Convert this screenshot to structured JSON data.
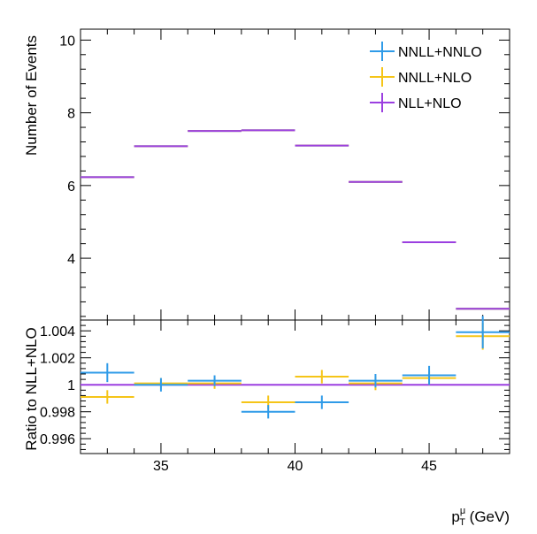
{
  "chart_data": [
    {
      "type": "line",
      "title": "",
      "xlabel": "",
      "ylabel": "Number of Events",
      "ylim": [
        2.3,
        10.3
      ],
      "xlim": [
        32,
        48
      ],
      "y_ticks": [
        "4",
        "6",
        "8",
        "10"
      ],
      "bins": [
        [
          32,
          34
        ],
        [
          34,
          36
        ],
        [
          36,
          38
        ],
        [
          38,
          40
        ],
        [
          40,
          42
        ],
        [
          42,
          44
        ],
        [
          44,
          46
        ],
        [
          46,
          48
        ]
      ],
      "series": [
        {
          "name": "NNLL+NNLO",
          "color": "#2f9be8",
          "values": [
            6.23,
            7.08,
            7.5,
            7.52,
            7.1,
            6.1,
            4.44,
            2.61
          ]
        },
        {
          "name": "NNLL+NLO",
          "color": "#f5c518",
          "values": [
            6.23,
            7.08,
            7.5,
            7.52,
            7.1,
            6.1,
            4.44,
            2.61
          ]
        },
        {
          "name": "NLL+NLO",
          "color": "#9b3fe0",
          "values": [
            6.23,
            7.08,
            7.5,
            7.52,
            7.1,
            6.1,
            4.44,
            2.61
          ]
        }
      ],
      "legend": {
        "position": "top-right",
        "entries": [
          "NNLL+NNLO",
          "NNLL+NLO",
          "NLL+NLO"
        ]
      }
    },
    {
      "type": "line",
      "title": "",
      "xlabel": "p_T^μ (GeV)",
      "ylabel": "Ratio to NLL+NLO",
      "ylim": [
        0.9949,
        1.0048
      ],
      "xlim": [
        32,
        48
      ],
      "x_ticks": [
        "35",
        "40",
        "45"
      ],
      "y_ticks": [
        "0.996",
        "0.998",
        "1",
        "1.002",
        "1.004"
      ],
      "bins": [
        [
          32,
          34
        ],
        [
          34,
          36
        ],
        [
          36,
          38
        ],
        [
          38,
          40
        ],
        [
          40,
          42
        ],
        [
          42,
          44
        ],
        [
          44,
          46
        ],
        [
          46,
          48
        ]
      ],
      "series": [
        {
          "name": "NNLL+NNLO",
          "color": "#2f9be8",
          "values": [
            1.0009,
            1.0,
            1.0003,
            0.998,
            0.9987,
            1.0003,
            1.0007,
            1.0039
          ],
          "errors": [
            0.0007,
            0.0005,
            0.0004,
            0.0005,
            0.0005,
            0.0005,
            0.0007,
            0.0012
          ]
        },
        {
          "name": "NNLL+NLO",
          "color": "#f5c518",
          "values": [
            0.9991,
            1.0001,
            1.0001,
            0.9987,
            1.0006,
            1.0001,
            1.0005,
            1.0036
          ],
          "errors": [
            0.0005,
            0.0004,
            0.0004,
            0.0005,
            0.0005,
            0.0005,
            0.0005,
            0.001
          ]
        },
        {
          "name": "NLL+NLO",
          "color": "#9b3fe0",
          "values": [
            1.0,
            1.0,
            1.0,
            1.0,
            1.0,
            1.0,
            1.0,
            1.0
          ],
          "errors": [
            0,
            0,
            0,
            0,
            0,
            0,
            0,
            0
          ]
        }
      ]
    }
  ],
  "x_axis_title": {
    "main": "p",
    "sub": "T",
    "sup": "μ",
    "unit": " (GeV)"
  }
}
